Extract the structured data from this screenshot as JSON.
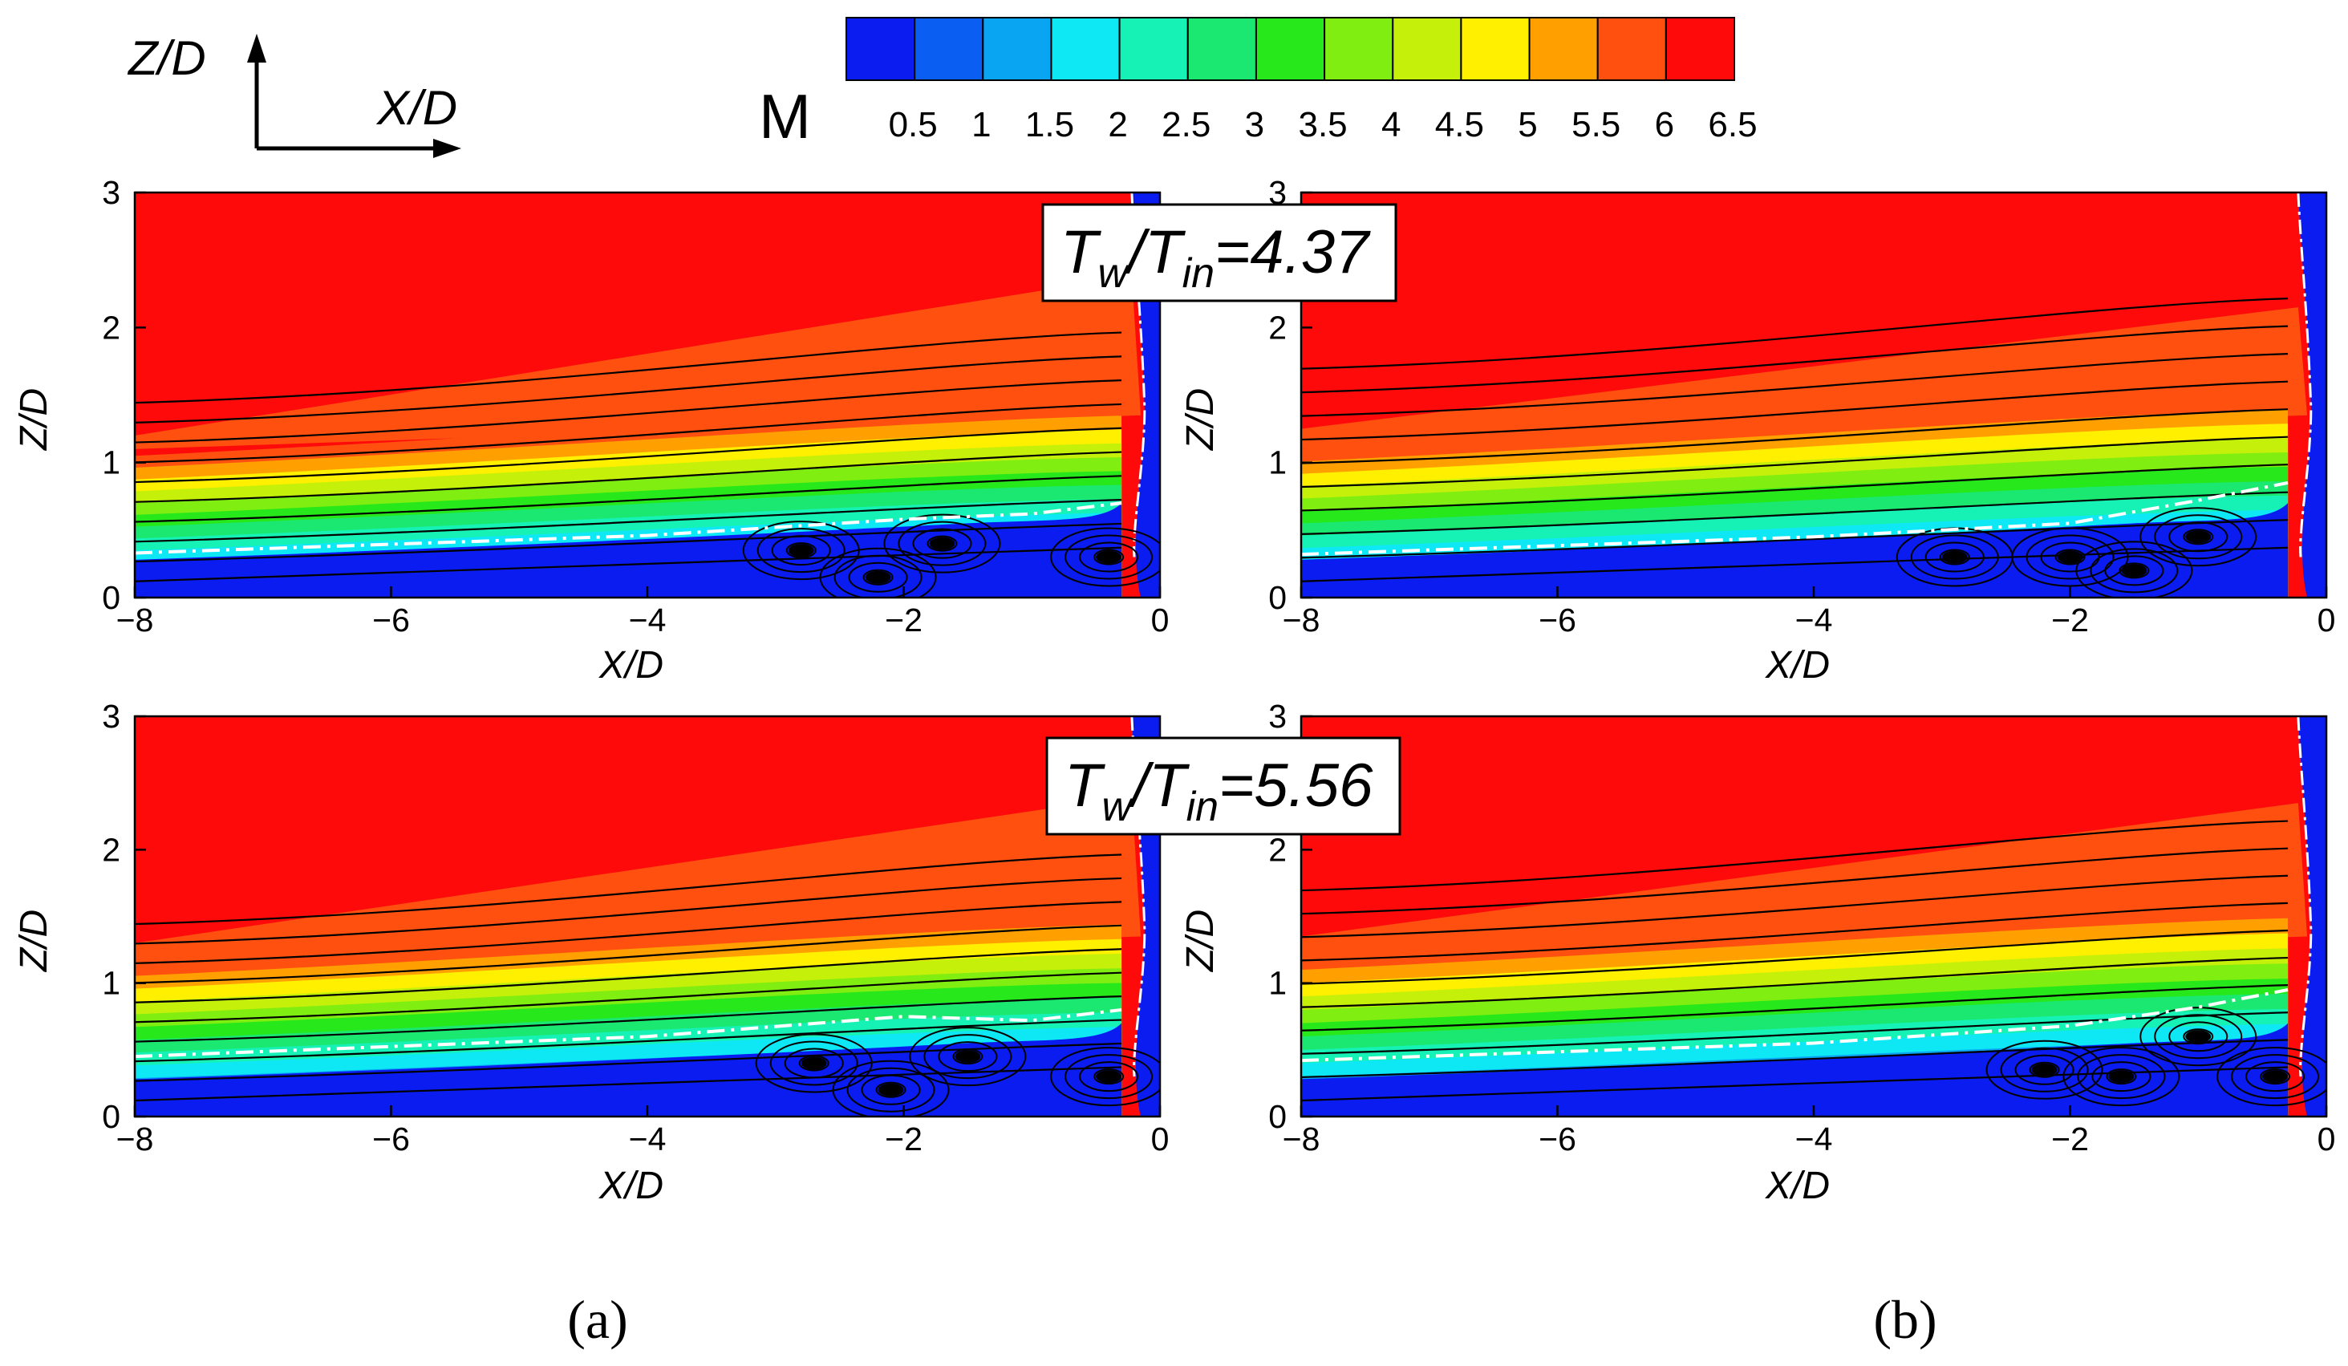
{
  "figure": {
    "panel_letters": [
      "(a)",
      "(b)"
    ],
    "annotations": [
      {
        "lhs": "T",
        "lhs_sub": "w",
        "slash": "/",
        "rhs": "T",
        "rhs_sub": "in",
        "value": "=4.37"
      },
      {
        "lhs": "T",
        "lhs_sub": "w",
        "slash": "/",
        "rhs": "T",
        "rhs_sub": "in",
        "value": "=5.56"
      }
    ],
    "axes_indicator": {
      "vertical_label": "Z/D",
      "horizontal_label": "X/D"
    }
  },
  "colorbar": {
    "variable": "M",
    "ticks": [
      "0.5",
      "1",
      "1.5",
      "2",
      "2.5",
      "3",
      "3.5",
      "4",
      "4.5",
      "5",
      "5.5",
      "6",
      "6.5"
    ],
    "colors": [
      "#0a1cf0",
      "#0a5ff2",
      "#0aa5f2",
      "#0ee8f5",
      "#16f2b6",
      "#1be870",
      "#26e81a",
      "#80ee10",
      "#c5f00a",
      "#fff000",
      "#ffa000",
      "#ff5010",
      "#ff0a0a"
    ]
  },
  "chart_data": [
    {
      "type": "heatmap",
      "panel": "(a)",
      "row": 1,
      "title": "",
      "xlabel": "X/D",
      "ylabel": "Z/D",
      "xlim": [
        -8,
        0
      ],
      "ylim": [
        0,
        3
      ],
      "xticks": [
        "-8",
        "-6",
        "-4",
        "-2",
        "0"
      ],
      "yticks": [
        "0",
        "1",
        "2",
        "3"
      ],
      "field": "Mach number M",
      "shock_top_z": 2.38,
      "bl_edge_z_at_x_minus_8": 1.05,
      "bl_edge_z_at_x_0": 1.45,
      "sonic_line": [
        [
          -8,
          0.33
        ],
        [
          -4,
          0.46
        ],
        [
          -2,
          0.58
        ],
        [
          -1,
          0.62
        ],
        [
          -0.3,
          0.7
        ]
      ],
      "vortex_centers": [
        [
          -2.8,
          0.35
        ],
        [
          -1.7,
          0.4
        ],
        [
          -0.4,
          0.3
        ],
        [
          -2.2,
          0.15
        ]
      ]
    },
    {
      "type": "heatmap",
      "panel": "(b)",
      "row": 1,
      "title": "",
      "xlabel": "X/D",
      "ylabel": "Z/D",
      "xlim": [
        -8,
        0
      ],
      "ylim": [
        0,
        3
      ],
      "xticks": [
        "-8",
        "-6",
        "-4",
        "-2",
        "0"
      ],
      "yticks": [
        "0",
        "1",
        "2",
        "3"
      ],
      "field": "Mach number M",
      "shock_top_z": 2.15,
      "bl_edge_z_at_x_minus_8": 1.1,
      "bl_edge_z_at_x_0": 1.5,
      "sonic_line": [
        [
          -8,
          0.32
        ],
        [
          -4,
          0.45
        ],
        [
          -2,
          0.55
        ],
        [
          -1,
          0.72
        ],
        [
          -0.3,
          0.85
        ]
      ],
      "vortex_centers": [
        [
          -2.9,
          0.3
        ],
        [
          -2.0,
          0.3
        ],
        [
          -1.0,
          0.45
        ],
        [
          -1.5,
          0.2
        ]
      ]
    },
    {
      "type": "heatmap",
      "panel": "(a)",
      "row": 2,
      "title": "",
      "xlabel": "X/D",
      "ylabel": "Z/D",
      "xlim": [
        -8,
        0
      ],
      "ylim": [
        0,
        3
      ],
      "xticks": [
        "-8",
        "-6",
        "-4",
        "-2",
        "0"
      ],
      "yticks": [
        "0",
        "1",
        "2",
        "3"
      ],
      "field": "Mach number M",
      "shock_top_z": 2.4,
      "bl_edge_z_at_x_minus_8": 1.15,
      "bl_edge_z_at_x_0": 1.55,
      "sonic_line": [
        [
          -8,
          0.45
        ],
        [
          -4,
          0.6
        ],
        [
          -2,
          0.75
        ],
        [
          -1,
          0.72
        ],
        [
          -0.3,
          0.8
        ]
      ],
      "vortex_centers": [
        [
          -2.7,
          0.4
        ],
        [
          -1.5,
          0.45
        ],
        [
          -0.4,
          0.3
        ],
        [
          -2.1,
          0.2
        ]
      ]
    },
    {
      "type": "heatmap",
      "panel": "(b)",
      "row": 2,
      "title": "",
      "xlabel": "X/D",
      "ylabel": "Z/D",
      "xlim": [
        -8,
        0
      ],
      "ylim": [
        0,
        3
      ],
      "xticks": [
        "-8",
        "-6",
        "-4",
        "-2",
        "0"
      ],
      "yticks": [
        "0",
        "1",
        "2",
        "3"
      ],
      "field": "Mach number M",
      "shock_top_z": 2.35,
      "bl_edge_z_at_x_minus_8": 1.2,
      "bl_edge_z_at_x_0": 1.6,
      "sonic_line": [
        [
          -8,
          0.42
        ],
        [
          -4,
          0.55
        ],
        [
          -2,
          0.68
        ],
        [
          -1,
          0.82
        ],
        [
          -0.3,
          0.95
        ]
      ],
      "vortex_centers": [
        [
          -2.2,
          0.35
        ],
        [
          -1.0,
          0.6
        ],
        [
          -1.6,
          0.3
        ],
        [
          -0.4,
          0.3
        ]
      ]
    }
  ]
}
